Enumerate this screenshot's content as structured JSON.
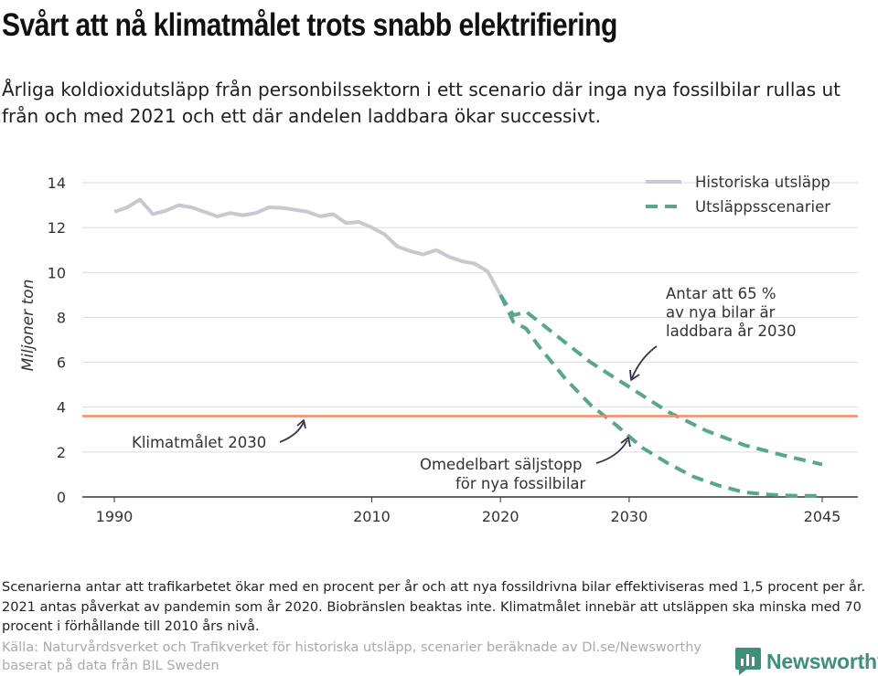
{
  "header": {
    "title": "Svårt att nå klimatmålet trots snabb elektrifiering",
    "subtitle": "Årliga koldioxidutsläpp från personbilssektorn i ett scenario där inga nya fossilbilar rullas ut från och med 2021 och ett där andelen laddbara ökar successivt."
  },
  "chart_data": {
    "type": "line",
    "title": "Svårt att nå klimatmålet trots snabb elektrifiering",
    "xlabel": "",
    "ylabel": "Miljoner ton",
    "xlim": [
      1990,
      2045
    ],
    "ylim": [
      0,
      14
    ],
    "x_ticks": [
      1990,
      2010,
      2020,
      2030,
      2045
    ],
    "y_ticks": [
      0,
      2,
      4,
      6,
      8,
      10,
      12,
      14
    ],
    "grid": true,
    "legend_position": "top-right",
    "colors": {
      "historical": "#c8c8d2",
      "scenario": "#5aa590",
      "target": "#f08e64",
      "grid": "#dedede",
      "axis": "#333333",
      "text": "#333333",
      "annotation": "#33334a"
    },
    "series": [
      {
        "name": "Historiska utsläpp",
        "style": "solid",
        "x": [
          1990,
          1991,
          1992,
          1993,
          1994,
          1995,
          1996,
          1997,
          1998,
          1999,
          2000,
          2001,
          2002,
          2003,
          2004,
          2005,
          2006,
          2007,
          2008,
          2009,
          2010,
          2011,
          2012,
          2013,
          2014,
          2015,
          2016,
          2017,
          2018,
          2019,
          2020
        ],
        "values": [
          12.7,
          12.9,
          13.25,
          12.6,
          12.75,
          13.0,
          12.9,
          12.7,
          12.5,
          12.65,
          12.55,
          12.65,
          12.9,
          12.88,
          12.8,
          12.7,
          12.5,
          12.6,
          12.2,
          12.25,
          12.0,
          11.7,
          11.15,
          10.95,
          10.8,
          11.0,
          10.7,
          10.5,
          10.4,
          10.05,
          9.0
        ]
      },
      {
        "name": "Antar att 65 % av nya bilar är laddbara år 2030",
        "legend_label": "Utsläppsscenarier",
        "style": "dashed",
        "x": [
          2020,
          2021,
          2022,
          2023,
          2025,
          2027,
          2030,
          2033,
          2036,
          2039,
          2042,
          2045
        ],
        "values": [
          9.0,
          8.1,
          8.25,
          7.8,
          6.9,
          6.0,
          4.9,
          3.8,
          2.95,
          2.3,
          1.85,
          1.45
        ]
      },
      {
        "name": "Omedelbart säljstopp för nya fossilbilar",
        "legend_label": "Utsläppsscenarier",
        "style": "dashed",
        "x": [
          2020,
          2021,
          2022,
          2023,
          2025,
          2027,
          2029,
          2031,
          2033,
          2035,
          2037,
          2039,
          2041,
          2043,
          2045
        ],
        "values": [
          9.0,
          7.8,
          7.5,
          6.7,
          5.3,
          4.1,
          3.2,
          2.2,
          1.5,
          0.9,
          0.5,
          0.2,
          0.1,
          0.05,
          0.05
        ]
      },
      {
        "name": "Klimatmålet 2030",
        "style": "solid",
        "x": [
          1990,
          2045
        ],
        "values": [
          3.6,
          3.6
        ]
      }
    ],
    "legend": [
      {
        "label": "Historiska utsläpp",
        "style": "solid"
      },
      {
        "label": "Utsläppsscenarier",
        "style": "dashed"
      }
    ],
    "annotations": {
      "target": "Klimatmålet 2030",
      "scenario65": [
        "Antar att 65 %",
        " av nya bilar är",
        "laddbara år 2030"
      ],
      "stop": [
        "Omedelbart säljstopp",
        "för nya fossilbilar"
      ]
    }
  },
  "footer": {
    "note": "Scenarierna antar att trafikarbetet ökar med en procent per år och att nya fossildrivna bilar effektiviseras med 1,5 procent per år. 2021 antas påverkat av pandemin som år 2020. Biobränslen beaktas inte. Klimatmålet innebär att utsläppen ska minska med 70 procent i förhållande till 2010 års nivå.",
    "source": "Källa: Naturvårdsverket och Trafikverket för historiska utsläpp, scenarier beräknade av DI.se/Newsworthy baserat på data från BIL Sweden",
    "brand": "Newsworthy",
    "brand_color": "#3f8f7b"
  }
}
